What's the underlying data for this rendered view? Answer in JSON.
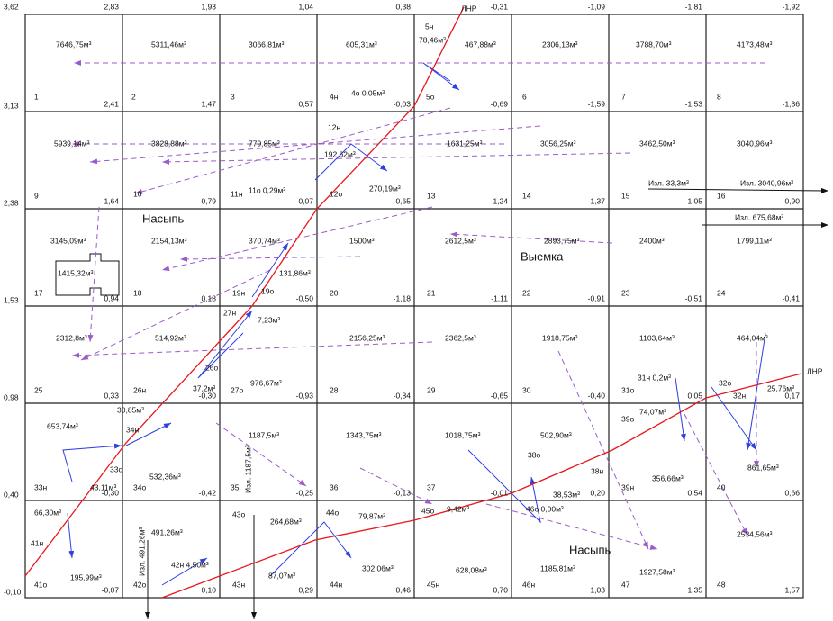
{
  "corners_top": [
    "3,62",
    "2,83",
    "1,93",
    "1,04",
    "0,38",
    "-0,31",
    "-1,09",
    "-1,81",
    "-1,92"
  ],
  "corners_left": [
    "3,13",
    "2,38",
    "1,53",
    "0,98",
    "0,40",
    "-0,10"
  ],
  "marks": [
    [
      "2,41",
      "1,47",
      "0,57",
      "-0,03",
      "-0,69",
      "-1,59",
      "-1,53",
      "-1,36"
    ],
    [
      "1,64",
      "0,79",
      "-0,07",
      "-0,65",
      "-1,24",
      "-1,37",
      "-1,05",
      "-0,90"
    ],
    [
      "0,94",
      "0,18",
      "-0,50",
      "-1,18",
      "-1,11",
      "-0,91",
      "-0,51",
      "-0,41"
    ],
    [
      "0,33",
      "-0,30",
      "-0,93",
      "-0,84",
      "-0,65",
      "-0,40",
      "0,05",
      "0,17"
    ],
    [
      "-0,30",
      "-0,42",
      "-0,25",
      "-0,13",
      "-0,01",
      "0,20",
      "0,54",
      "0,66"
    ],
    [
      "-0,07",
      "0,10",
      "0,29",
      "0,46",
      "0,70",
      "1,03",
      "1,35",
      "1,57"
    ]
  ],
  "line_label": "ЛНР",
  "labels": [
    "7646,75м³",
    "5311,46м³",
    "3066,81м³",
    "605,31м³",
    "467,88м³",
    "2306,13м³",
    "3788,70м³",
    "4173,48м³",
    "5н",
    "78,46м³",
    "1",
    "2",
    "3",
    "4н",
    "4о 0,05м³",
    "5о",
    "6",
    "7",
    "8",
    "5939,14м³",
    "3828,88м³",
    "779,85м³",
    "12н",
    "192,62м³",
    "270,19м³",
    "1631,25м³",
    "3056,25м³",
    "3462,50м³",
    "3040,96м³",
    "9",
    "10",
    "11н",
    "11о 0,29м³",
    "12о",
    "13",
    "14",
    "15",
    "16",
    "Изл. 33,3м³",
    "Изл. 3040,96м³",
    "3145,09м³",
    "1415,32м³",
    "2154,13м³",
    "370,74м³",
    "131,86м³",
    "1500м³",
    "2612,5м³",
    "2893,75м³",
    "2400м³",
    "1799,11м³",
    "Изл. 675,68м³",
    "Насыпь",
    "Выемка",
    "17",
    "18",
    "19н",
    "19о",
    "20",
    "21",
    "22",
    "23",
    "24",
    "27н",
    "7,23м³",
    "2312,8м³",
    "514,92м³",
    "976,67м³",
    "2156,25м³",
    "2362,5м³",
    "1918,75м³",
    "1103,64м³",
    "464,04м³",
    "37,2м³",
    "26о",
    "31н 0,2м³",
    "32о",
    "32н",
    "25,76м³",
    "25",
    "26н",
    "27о",
    "28",
    "29",
    "30",
    "31о",
    "653,74м³",
    "43,11м³",
    "30,85м³",
    "34н",
    "33о",
    "532,36м³",
    "1187,5м³",
    "1343,75м³",
    "1018,75м³",
    "502,90м³",
    "38о",
    "38н",
    "38,53м³",
    "74,07м³",
    "39о",
    "356,66м³",
    "39н",
    "861,65м³",
    "33н",
    "34о",
    "35",
    "36",
    "37",
    "40",
    "66,30м³",
    "41н",
    "195,99м³",
    "491,26м³",
    "42н 4,50м³",
    "43о",
    "264,68м³",
    "87,07м³",
    "43н",
    "44о",
    "79,87м³",
    "302,06м³",
    "44н",
    "45о",
    "9,42м³",
    "628,08м³",
    "45н",
    "46о 0,00м³",
    "Насыпь",
    "1185,81м³",
    "46н",
    "1927,58м³",
    "47",
    "2534,56м³",
    "48",
    "41о",
    "42о",
    "Изл. 491,26м³",
    "Изл. 1187,5м³"
  ]
}
